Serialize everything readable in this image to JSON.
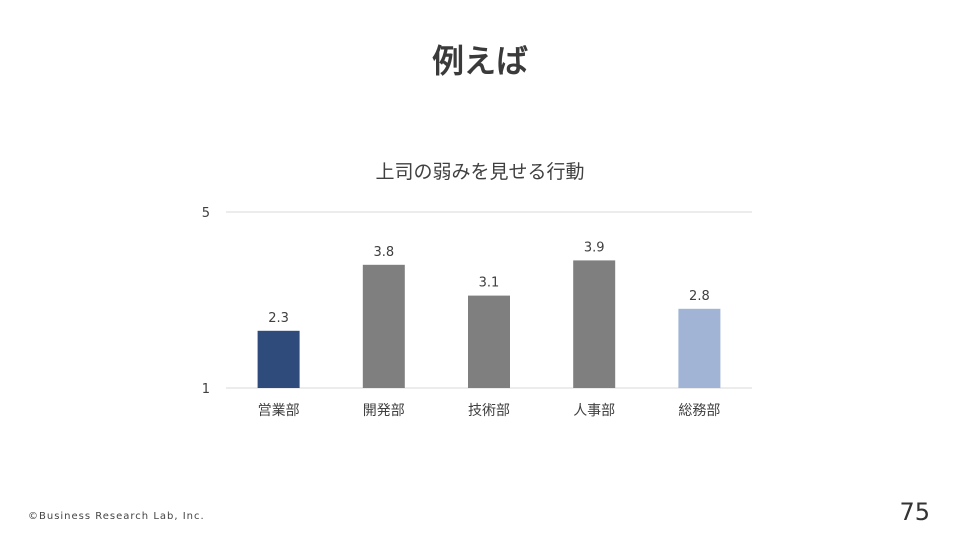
{
  "slide": {
    "title": "例えば",
    "copyright": "©Business Research Lab, Inc.",
    "page_number": "75"
  },
  "colors": {
    "highlight": "#2f4b7c",
    "default": "#7f7f7f",
    "light": "#a1b4d6",
    "grid": "#d9d9d9",
    "text": "#404040"
  },
  "chart_data": {
    "type": "bar",
    "title": "上司の弱みを見せる行動",
    "categories": [
      "営業部",
      "開発部",
      "技術部",
      "人事部",
      "総務部"
    ],
    "values": [
      2.3,
      3.8,
      3.1,
      3.9,
      2.8
    ],
    "value_labels": [
      "2.3",
      "3.8",
      "3.1",
      "3.9",
      "2.8"
    ],
    "bar_colors": [
      "#2f4b7c",
      "#7f7f7f",
      "#7f7f7f",
      "#7f7f7f",
      "#a1b4d6"
    ],
    "ylim": [
      1,
      5
    ],
    "yticks": [
      "1",
      "5"
    ],
    "grid": true,
    "legend": "none"
  }
}
